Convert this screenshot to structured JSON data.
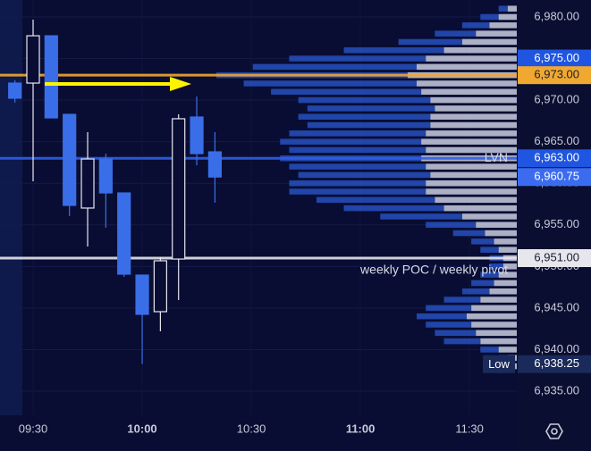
{
  "chart_data": {
    "type": "candlestick",
    "x": [
      565,
      570,
      575,
      580,
      585,
      590,
      595,
      600,
      605,
      610,
      615,
      620
    ],
    "open": [
      6972.05,
      6972.05,
      6977.74,
      6968.29,
      6957.02,
      6962.92,
      6958.84,
      6948.96,
      6944.56,
      6950.89,
      6967.97,
      6963.78
    ],
    "high": [
      6972.4,
      6979.68,
      6977.74,
      6968.29,
      6966.15,
      6963.57,
      6958.84,
      6948.96,
      6951.11,
      6968.29,
      6970.44,
      6966.15
    ],
    "low": [
      6969.7,
      6960.24,
      6967.86,
      6956.05,
      6952.4,
      6954.65,
      6948.75,
      6938.25,
      6942.2,
      6945.95,
      6962.17,
      6957.66
    ],
    "close": [
      6970.23,
      6977.74,
      6967.86,
      6957.34,
      6962.92,
      6958.84,
      6949.07,
      6944.24,
      6950.68,
      6967.76,
      6963.57,
      6960.75
    ],
    "up_color": "#e8e8f0",
    "down_color": "#3a6ee8",
    "xlim": [
      560.9,
      703.0
    ],
    "xticks": [
      {
        "value": 570,
        "label": "09:30"
      },
      {
        "value": 600,
        "label": "10:00"
      },
      {
        "value": 630,
        "label": "10:30"
      },
      {
        "value": 660,
        "label": "11:00"
      },
      {
        "value": 690,
        "label": "11:30"
      }
    ],
    "ylim": [
      6932.1,
      6982.04
    ],
    "yticks": [
      {
        "value": 6935,
        "label": "6,935.00"
      },
      {
        "value": 6940,
        "label": "6,940.00"
      },
      {
        "value": 6945,
        "label": "6,945.00"
      },
      {
        "value": 6950,
        "label": "6,950.00"
      },
      {
        "value": 6955,
        "label": "6,955.00"
      },
      {
        "value": 6960,
        "label": "6,960.00"
      },
      {
        "value": 6965,
        "label": "6,965.00"
      },
      {
        "value": 6970,
        "label": "6,970.00"
      },
      {
        "value": 6975,
        "label": "6,975.00"
      },
      {
        "value": 6980,
        "label": "6,980.00"
      }
    ],
    "grid": true,
    "level_lines": [
      {
        "value": 6973,
        "color": "#f0a830"
      },
      {
        "value": 6963,
        "color": "#2f5ee8"
      },
      {
        "value": 6951,
        "color": "#e6e6ec"
      }
    ],
    "price_labels": [
      {
        "value": 6975,
        "label": "6,975.00",
        "color": "#1f55e0"
      },
      {
        "value": 6973,
        "label": "6,973.00",
        "color": "#f0a830"
      },
      {
        "value": 6963,
        "label": "6,963.00",
        "color": "#1f55e0",
        "note": "LVN"
      },
      {
        "value": 6960.75,
        "label": "6,960.75",
        "color": "#3b6cf0"
      },
      {
        "value": 6951,
        "label": "6,951.00",
        "color": "#e6e6ec",
        "note": "weekly POC / weekly pivot"
      },
      {
        "value": 6938.25,
        "label": "6,938.25",
        "color": "#1a2a5a",
        "note": "Low"
      }
    ],
    "volume_profile": {
      "levels": [
        6938,
        6939,
        6940,
        6941,
        6942,
        6943,
        6944,
        6945,
        6946,
        6947,
        6948,
        6949,
        6950,
        6951,
        6952,
        6953,
        6954,
        6955,
        6956,
        6957,
        6958,
        6959,
        6960,
        6961,
        6962,
        6963,
        6964,
        6965,
        6966,
        6967,
        6968,
        6969,
        6970,
        6971,
        6972,
        6973,
        6974,
        6975,
        6976,
        6977,
        6978,
        6979,
        6980,
        6981
      ],
      "series": [
        {
          "color": "#c9cedf",
          "values": [
            6,
            10,
            20,
            40,
            45,
            50,
            55,
            50,
            40,
            30,
            25,
            20,
            15,
            15,
            20,
            25,
            35,
            45,
            60,
            80,
            90,
            100,
            100,
            95,
            100,
            105,
            100,
            105,
            100,
            95,
            95,
            90,
            95,
            105,
            110,
            120,
            110,
            100,
            80,
            60,
            45,
            30,
            20,
            10
          ]
        },
        {
          "color": "#2a58d0",
          "values": [
            4,
            10,
            20,
            40,
            45,
            50,
            55,
            50,
            40,
            30,
            25,
            20,
            15,
            15,
            20,
            25,
            35,
            55,
            90,
            110,
            130,
            150,
            150,
            145,
            150,
            155,
            150,
            155,
            150,
            135,
            145,
            140,
            145,
            165,
            190,
            210,
            180,
            150,
            110,
            70,
            45,
            30,
            20,
            10
          ]
        }
      ]
    }
  }
}
